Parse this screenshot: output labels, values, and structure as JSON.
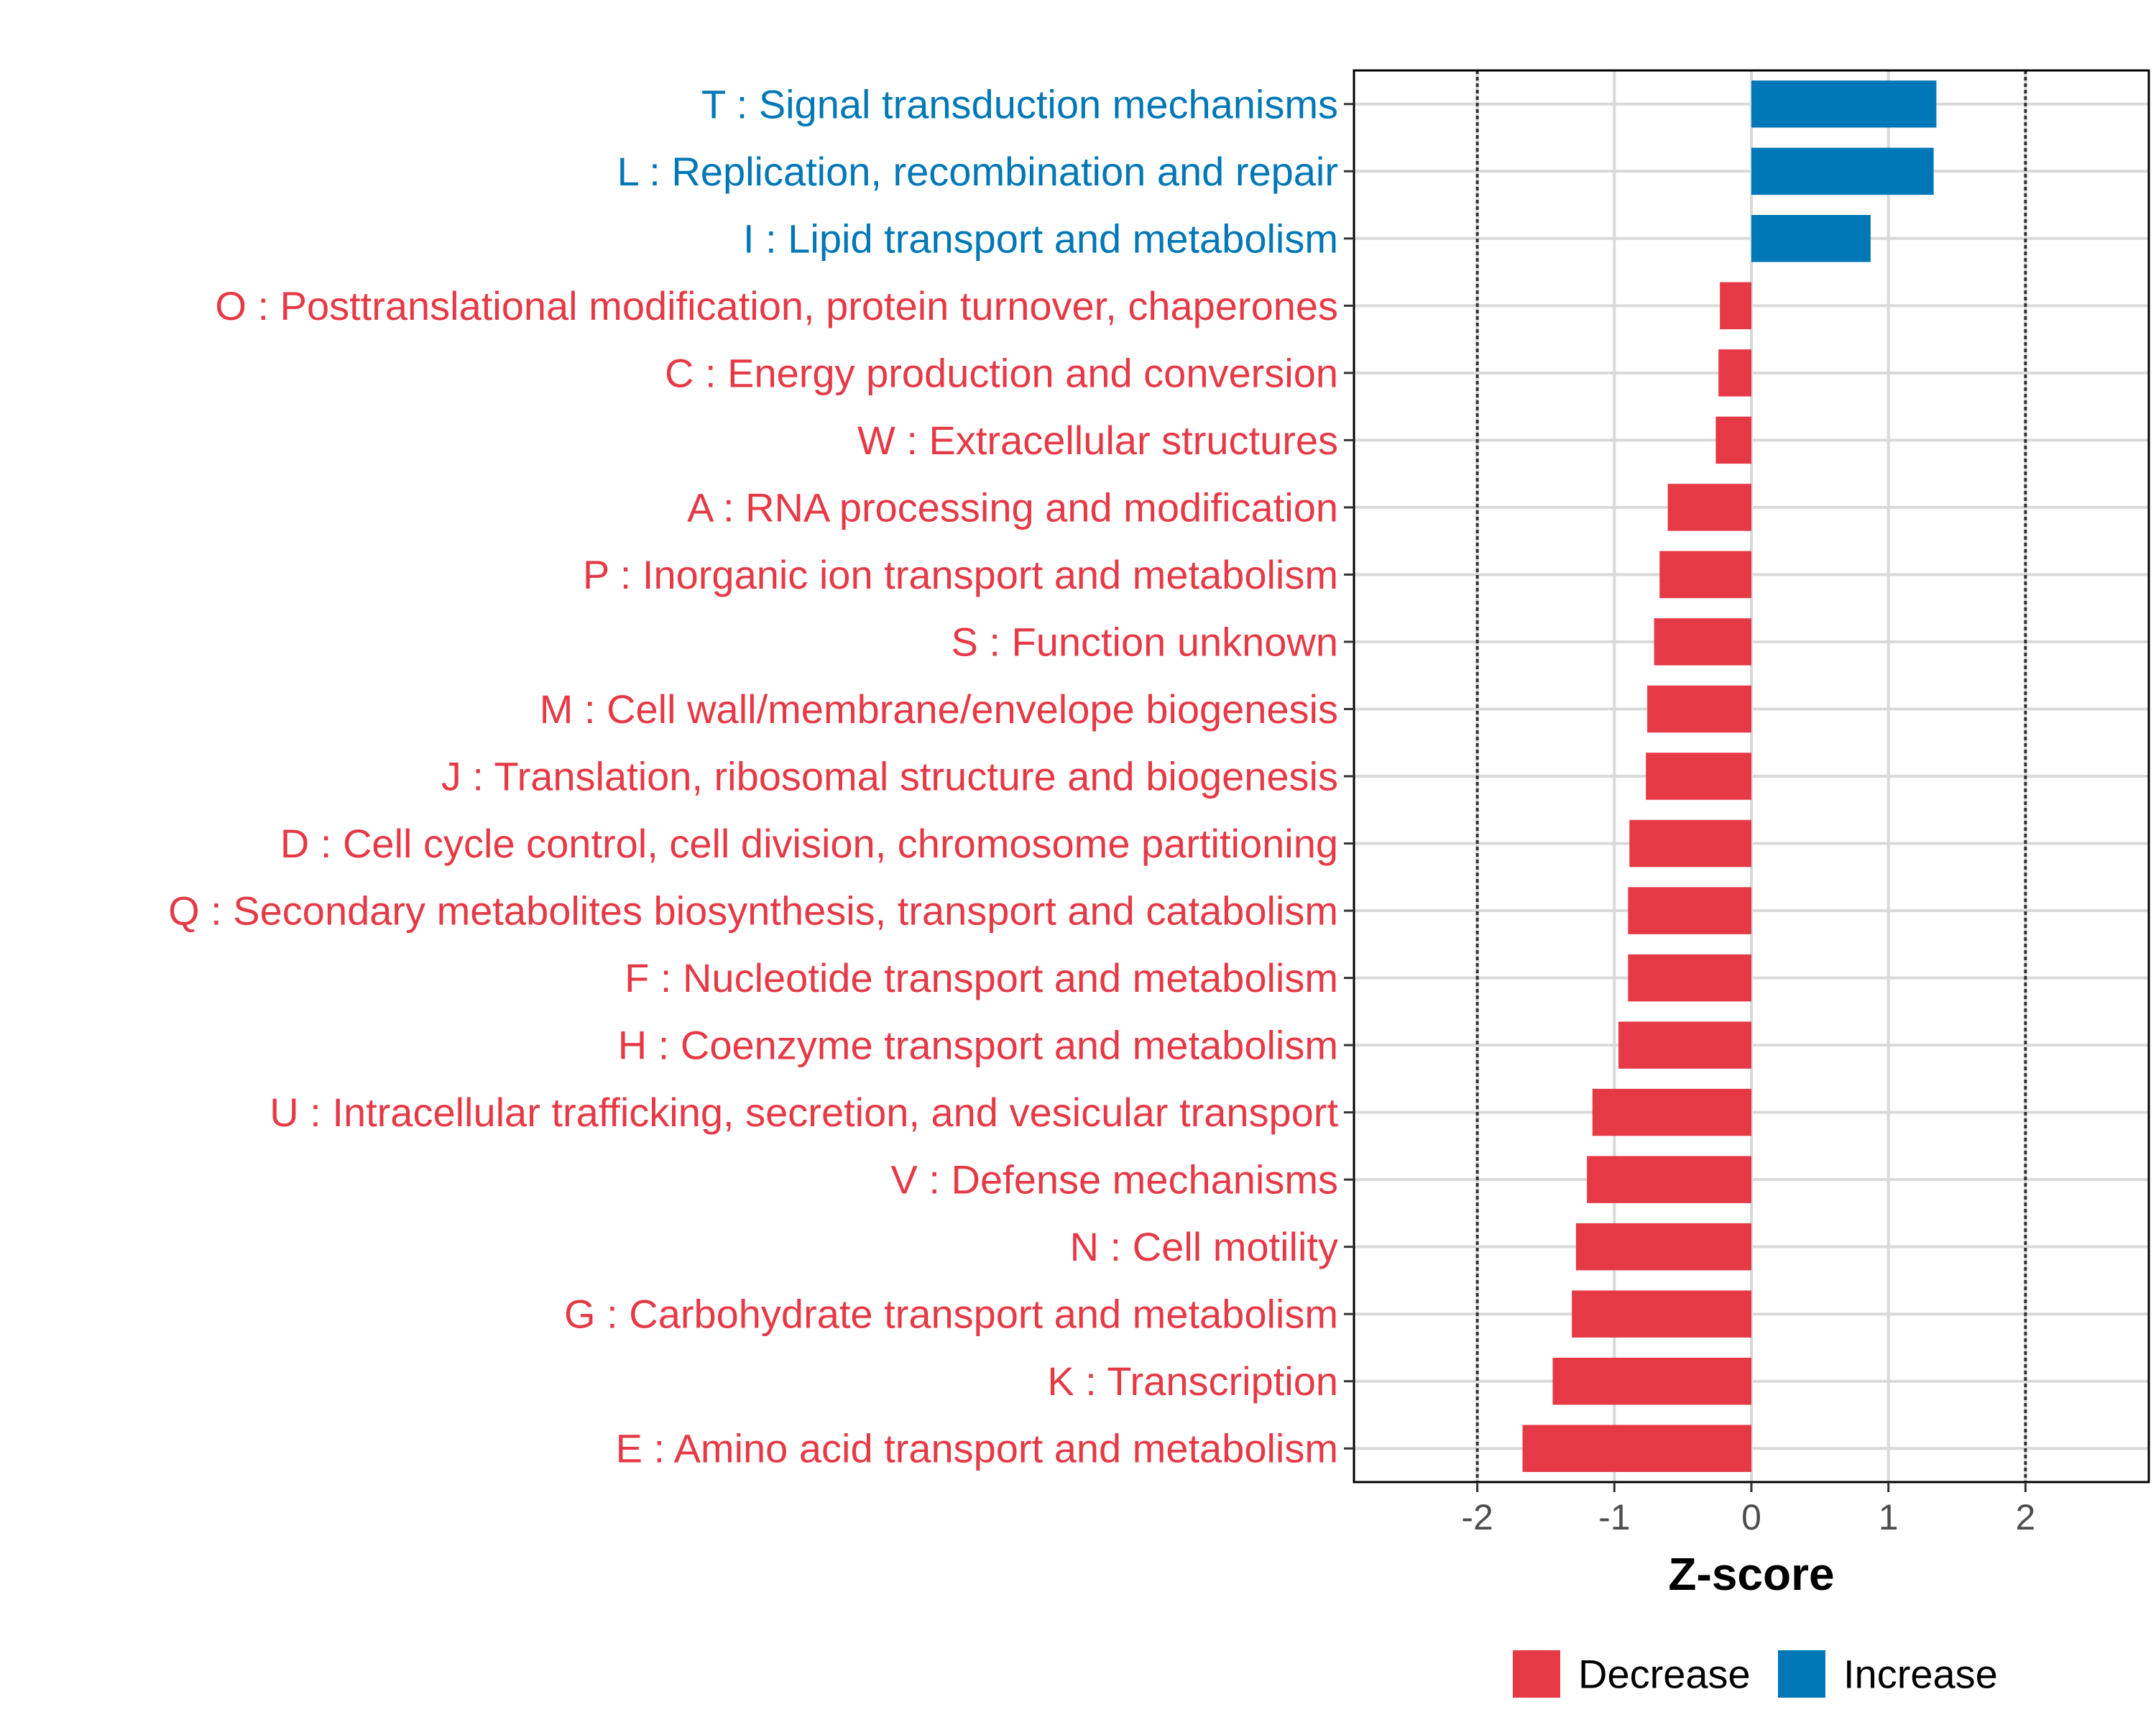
{
  "chart_data": {
    "type": "bar",
    "orientation": "horizontal",
    "title": "",
    "xlabel": "Z-score",
    "ylabel": "",
    "xlim": [
      -2.9,
      2.9
    ],
    "xticks": [
      -2,
      -1,
      0,
      1,
      2
    ],
    "xtick_labels": [
      "-2",
      "-1",
      "0",
      "1",
      "2"
    ],
    "reference_lines": [
      -2,
      2
    ],
    "grid": true,
    "legend_position": "bottom",
    "colors": {
      "Decrease": "#E63946",
      "Increase": "#0077B6"
    },
    "categories": [
      "T : Signal transduction mechanisms",
      "L : Replication, recombination and repair",
      "I : Lipid transport and metabolism",
      "O : Posttranslational modification, protein turnover, chaperones",
      "C : Energy production and conversion",
      "W : Extracellular structures",
      "A : RNA processing and modification",
      "P : Inorganic ion transport and metabolism",
      "S : Function unknown",
      "M : Cell wall/membrane/envelope biogenesis",
      "J : Translation, ribosomal structure and biogenesis",
      "D : Cell cycle control, cell division, chromosome partitioning",
      "Q : Secondary metabolites biosynthesis, transport and catabolism",
      "F : Nucleotide transport and metabolism",
      "H : Coenzyme transport and metabolism",
      "U : Intracellular trafficking, secretion, and vesicular transport",
      "V : Defense mechanisms",
      "N : Cell motility",
      "G : Carbohydrate transport and metabolism",
      "K : Transcription",
      "E : Amino acid transport and metabolism"
    ],
    "values": [
      1.35,
      1.33,
      0.87,
      -0.23,
      -0.24,
      -0.26,
      -0.61,
      -0.67,
      -0.71,
      -0.76,
      -0.77,
      -0.89,
      -0.9,
      -0.9,
      -0.97,
      -1.16,
      -1.2,
      -1.28,
      -1.31,
      -1.45,
      -1.67
    ],
    "groups": [
      "Increase",
      "Increase",
      "Increase",
      "Decrease",
      "Decrease",
      "Decrease",
      "Decrease",
      "Decrease",
      "Decrease",
      "Decrease",
      "Decrease",
      "Decrease",
      "Decrease",
      "Decrease",
      "Decrease",
      "Decrease",
      "Decrease",
      "Decrease",
      "Decrease",
      "Decrease",
      "Decrease"
    ],
    "legend": [
      "Decrease",
      "Increase"
    ]
  }
}
